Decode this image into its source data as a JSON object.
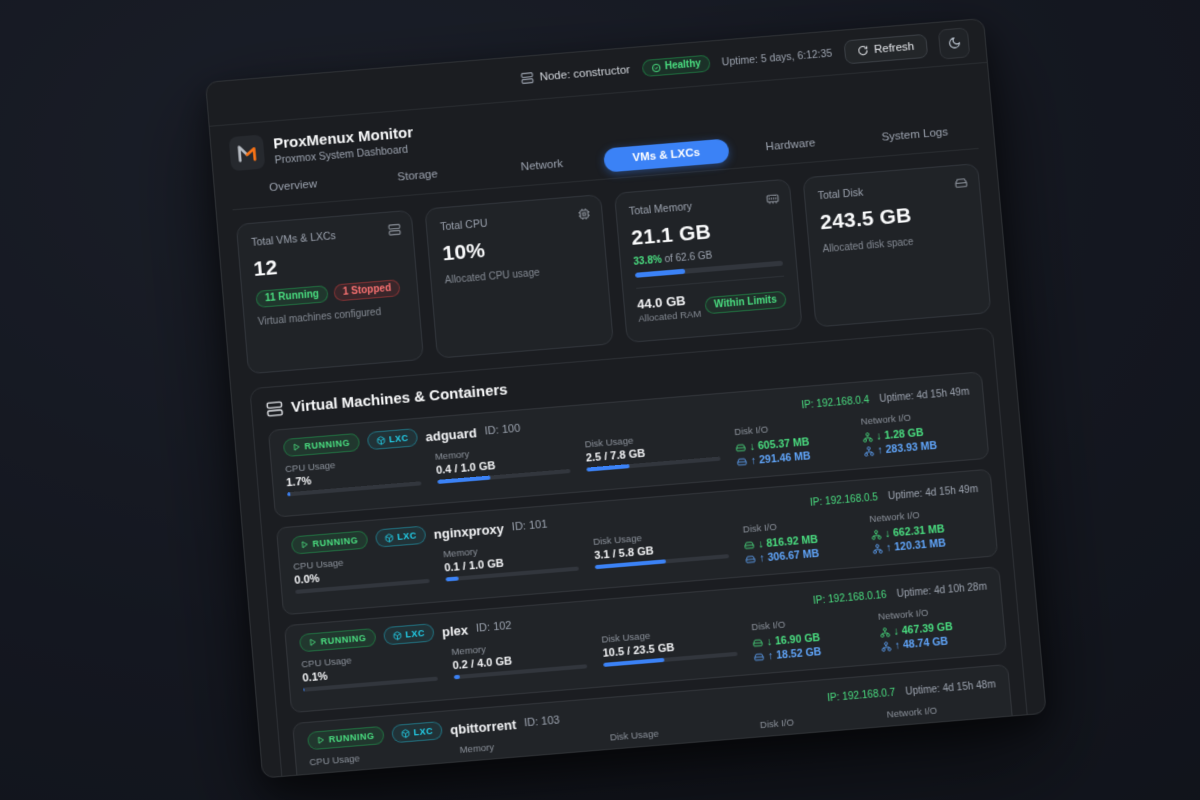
{
  "topbar": {
    "node_label": "Node: constructor",
    "health_badge": "Healthy",
    "uptime": "Uptime: 5 days, 6:12:35",
    "refresh_label": "Refresh"
  },
  "header": {
    "title": "ProxMenux Monitor",
    "subtitle": "Proxmox System Dashboard"
  },
  "tabs": [
    {
      "label": "Overview",
      "active": false
    },
    {
      "label": "Storage",
      "active": false
    },
    {
      "label": "Network",
      "active": false
    },
    {
      "label": "VMs & LXCs",
      "active": true
    },
    {
      "label": "Hardware",
      "active": false
    },
    {
      "label": "System Logs",
      "active": false
    }
  ],
  "cards": {
    "vms": {
      "title": "Total VMs & LXCs",
      "value": "12",
      "running_badge": "11 Running",
      "stopped_badge": "1 Stopped",
      "footer": "Virtual machines configured"
    },
    "cpu": {
      "title": "Total CPU",
      "value": "10%",
      "footer": "Allocated CPU usage"
    },
    "memory": {
      "title": "Total Memory",
      "value": "21.1 GB",
      "percent_label": "33.8%",
      "of_label": " of 62.6 GB",
      "progress_percent": 34,
      "allocated_value": "44.0 GB",
      "allocated_label": "Allocated RAM",
      "status_badge": "Within Limits"
    },
    "disk": {
      "title": "Total Disk",
      "value": "243.5 GB",
      "footer": "Allocated disk space"
    }
  },
  "section": {
    "title": "Virtual Machines & Containers"
  },
  "labels": {
    "running": "RUNNING",
    "lxc": "LXC",
    "cpu": "CPU Usage",
    "memory": "Memory",
    "disk": "Disk Usage",
    "disk_io": "Disk I/O",
    "net_io": "Network I/O"
  },
  "vms": [
    {
      "name": "adguard",
      "id": "ID: 100",
      "ip": "IP: 192.168.0.4",
      "uptime": "Uptime: 4d 15h 49m",
      "cpu": "1.7%",
      "cpu_pct": 2,
      "mem": "0.4 / 1.0 GB",
      "mem_pct": 40,
      "disk": "2.5 / 7.8 GB",
      "disk_pct": 32,
      "disk_down": "↓ 605.37 MB",
      "disk_up": "↑ 291.46 MB",
      "net_down": "↓ 1.28 GB",
      "net_up": "↑ 283.93 MB"
    },
    {
      "name": "nginxproxy",
      "id": "ID: 101",
      "ip": "IP: 192.168.0.5",
      "uptime": "Uptime: 4d 15h 49m",
      "cpu": "0.0%",
      "cpu_pct": 0,
      "mem": "0.1 / 1.0 GB",
      "mem_pct": 10,
      "disk": "3.1 / 5.8 GB",
      "disk_pct": 53,
      "disk_down": "↓ 816.92 MB",
      "disk_up": "↑ 306.67 MB",
      "net_down": "↓ 662.31 MB",
      "net_up": "↑ 120.31 MB"
    },
    {
      "name": "plex",
      "id": "ID: 102",
      "ip": "IP: 192.168.0.16",
      "uptime": "Uptime: 4d 10h 28m",
      "cpu": "0.1%",
      "cpu_pct": 1,
      "mem": "0.2 / 4.0 GB",
      "mem_pct": 5,
      "disk": "10.5 / 23.5 GB",
      "disk_pct": 45,
      "disk_down": "↓ 16.90 GB",
      "disk_up": "↑ 18.52 GB",
      "net_down": "↓ 467.39 GB",
      "net_up": "↑ 48.74 GB"
    },
    {
      "name": "qbittorrent",
      "id": "ID: 103",
      "ip": "IP: 192.168.0.7",
      "uptime": "Uptime: 4d 15h 48m",
      "cpu": "",
      "cpu_pct": 0,
      "mem": "",
      "mem_pct": 0,
      "disk": "",
      "disk_pct": 0,
      "disk_down": "",
      "disk_up": "",
      "net_down": "",
      "net_up": ""
    }
  ],
  "colors": {
    "accent": "#3b82f6",
    "green": "#4ade80",
    "blue_up": "#60a5fa",
    "red": "#f87171",
    "cyan": "#22d3ee",
    "orange": "#f97316"
  }
}
